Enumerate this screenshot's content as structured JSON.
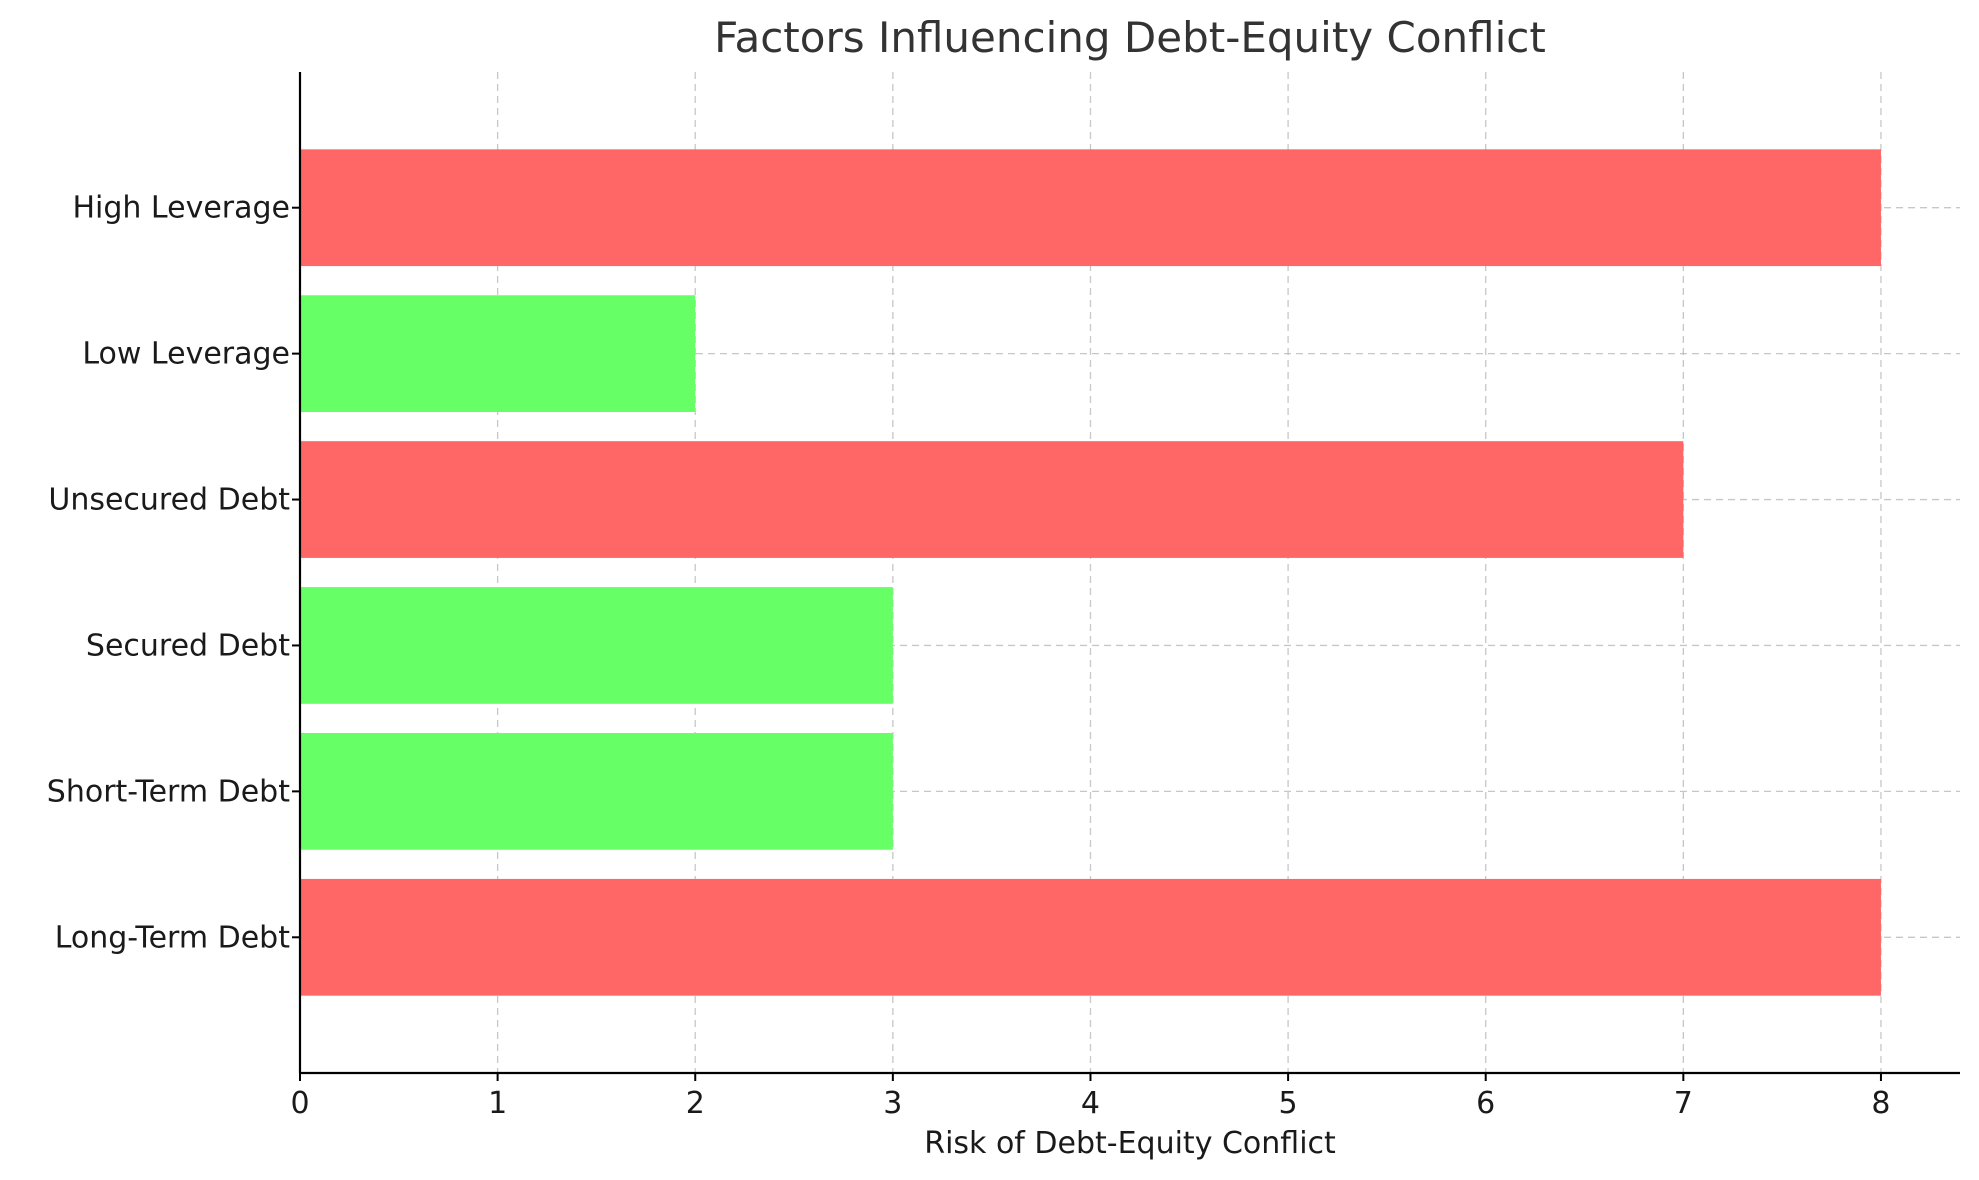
{
  "chart_data": {
    "type": "bar",
    "orientation": "horizontal",
    "title": "Factors Influencing Debt-Equity Conflict",
    "xlabel": "Risk of Debt-Equity Conflict",
    "ylabel": "",
    "xlim": [
      0,
      8.4
    ],
    "xticks": [
      0,
      1,
      2,
      3,
      4,
      5,
      6,
      7,
      8
    ],
    "grid": true,
    "categories": [
      "Long-Term Debt",
      "Short-Term Debt",
      "Secured Debt",
      "Unsecured Debt",
      "Low Leverage",
      "High Leverage"
    ],
    "values": [
      8,
      3,
      3,
      7,
      2,
      8
    ],
    "colors": [
      "#ff6666",
      "#66ff66",
      "#66ff66",
      "#ff6666",
      "#66ff66",
      "#ff6666"
    ]
  }
}
